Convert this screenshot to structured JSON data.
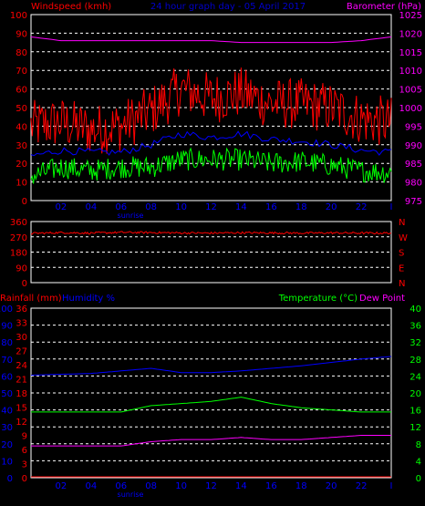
{
  "colors": {
    "wind": "#ff0000",
    "gust": "#00ff00",
    "avg": "#0000ff",
    "baro": "#ff00ff",
    "dir": "#ff0000",
    "grid": "#ffffff",
    "rain": "#ff0000",
    "humidity": "#0000ff",
    "temp": "#00ff00",
    "dew": "#ff00ff",
    "title": "#0000cc",
    "sunrise": "#0000ff"
  },
  "top": {
    "left_label": "Windspeed (kmh)",
    "title": "24 hour graph day - 05 April 2017",
    "right_label": "Barometer (hPa)"
  },
  "x_ticks": [
    "02",
    "04",
    "06",
    "08",
    "10",
    "12",
    "14",
    "16",
    "18",
    "20",
    "22",
    "I"
  ],
  "sunrise_label": "sunrise",
  "bottom": {
    "rain_label": "Rainfall (mm)",
    "humidity_label": "Humidity %",
    "temp_label": "Temperature (°C)",
    "dew_label": "Dew Point"
  },
  "chart_data": [
    {
      "type": "line",
      "title": "24 hour graph day - 05 April 2017",
      "ylabel": "Windspeed (kmh)",
      "y2label": "Barometer (hPa)",
      "ylim": [
        0,
        100
      ],
      "y2lim": [
        975,
        1025
      ],
      "y_ticks": [
        0,
        10,
        20,
        30,
        40,
        50,
        60,
        70,
        80,
        90,
        100
      ],
      "y2_ticks": [
        975,
        980,
        985,
        990,
        995,
        1000,
        1005,
        1010,
        1015,
        1020,
        1025
      ],
      "x": [
        0,
        2,
        4,
        6,
        8,
        10,
        12,
        14,
        16,
        18,
        20,
        22,
        24
      ],
      "series": [
        {
          "name": "Windspeed",
          "values": [
            40,
            42,
            38,
            40,
            48,
            60,
            55,
            58,
            52,
            52,
            50,
            44,
            42
          ]
        },
        {
          "name": "Average",
          "values": [
            24,
            27,
            26,
            26,
            30,
            36,
            34,
            36,
            33,
            32,
            30,
            27,
            26
          ]
        },
        {
          "name": "Gust",
          "values": [
            13,
            18,
            16,
            18,
            18,
            22,
            22,
            22,
            20,
            21,
            19,
            16,
            15
          ]
        },
        {
          "name": "Barometer",
          "values": [
            1019,
            1018,
            1018,
            1018,
            1018,
            1018,
            1018,
            1017.5,
            1017.5,
            1017.5,
            1017.5,
            1018,
            1019
          ]
        }
      ]
    },
    {
      "type": "line",
      "title": "",
      "y_ticks": [
        0,
        90,
        180,
        270,
        360
      ],
      "y2_ticks": [
        "N",
        "E",
        "S",
        "W",
        "N"
      ],
      "ylim": [
        0,
        360
      ],
      "x": [
        0,
        2,
        4,
        6,
        8,
        10,
        12,
        14,
        16,
        18,
        20,
        22,
        24
      ],
      "series": [
        {
          "name": "Wind direction",
          "values": [
            290,
            295,
            292,
            296,
            295,
            293,
            292,
            294,
            293,
            292,
            293,
            292,
            292
          ]
        }
      ]
    },
    {
      "type": "line",
      "ylabel": "Rainfall (mm)",
      "y_ticks_rain": [
        0,
        3,
        6,
        9,
        12,
        15,
        18,
        21,
        24,
        27,
        30,
        33,
        36
      ],
      "y_ticks_humidity": [
        0,
        10,
        20,
        30,
        40,
        50,
        60,
        70,
        80,
        90,
        100
      ],
      "y2label": "Temperature (°C)",
      "y2_ticks": [
        0,
        4,
        8,
        12,
        16,
        20,
        24,
        28,
        32,
        36,
        40
      ],
      "y2lim": [
        0,
        40
      ],
      "x": [
        0,
        2,
        4,
        6,
        8,
        10,
        12,
        14,
        16,
        18,
        20,
        22,
        24
      ],
      "series": [
        {
          "name": "Humidity %",
          "values": [
            60.5,
            61,
            61.5,
            63,
            64.5,
            62,
            62,
            63,
            64.5,
            66,
            68,
            70,
            71.5
          ]
        },
        {
          "name": "Temperature (°C)",
          "values": [
            15.5,
            15.5,
            15.5,
            15.5,
            17,
            17.5,
            18,
            19,
            17.5,
            16.5,
            16,
            15.5,
            15.5
          ]
        },
        {
          "name": "Dew Point",
          "values": [
            7.5,
            7.5,
            7.5,
            7.5,
            8.5,
            9,
            9,
            9.5,
            9,
            9,
            9.5,
            10,
            10
          ]
        },
        {
          "name": "Rainfall (mm)",
          "values": [
            0,
            0,
            0,
            0,
            0,
            0,
            0,
            0,
            0,
            0,
            0,
            0,
            0
          ]
        }
      ]
    }
  ]
}
